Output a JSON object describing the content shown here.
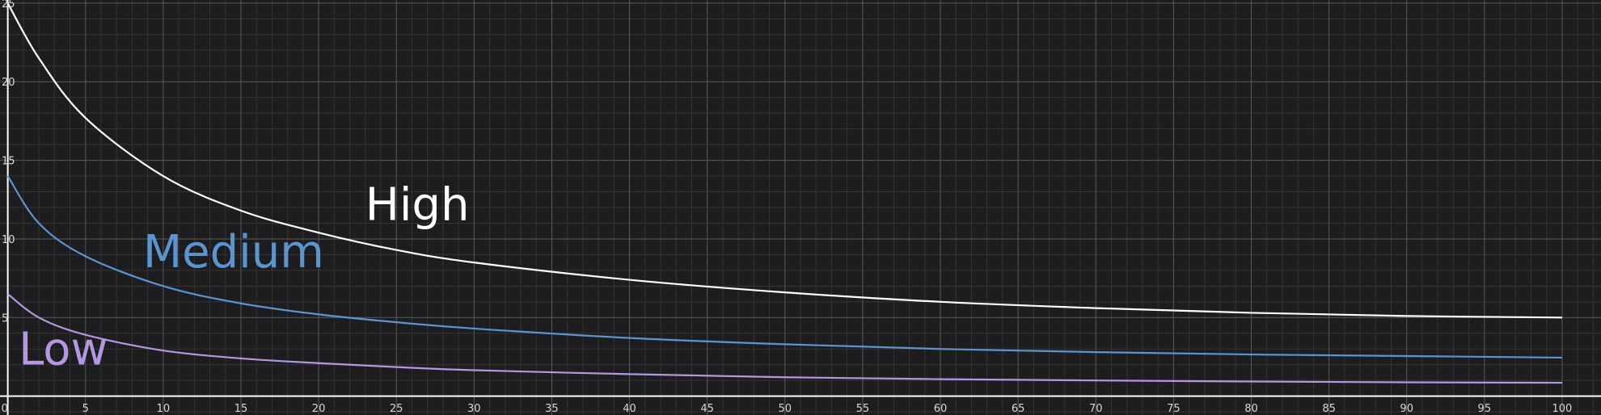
{
  "chart_data": {
    "type": "line",
    "title": "",
    "xlabel": "",
    "ylabel": "",
    "xlim": [
      -0.5,
      102.5
    ],
    "ylim": [
      -1.2,
      25.2
    ],
    "x_ticks": [
      "0",
      "5",
      "10",
      "15",
      "20",
      "25",
      "30",
      "35",
      "40",
      "45",
      "50",
      "55",
      "60",
      "65",
      "70",
      "75",
      "80",
      "85",
      "90",
      "95",
      "100"
    ],
    "y_ticks": [
      "5",
      "10",
      "15",
      "20",
      "25"
    ],
    "grid": true,
    "background": "#1d1d1f",
    "grid_major_color": "#5a5a5a",
    "grid_minor_color": "#343434",
    "axis_color": "#ffffff",
    "series": [
      {
        "name": "High",
        "color": "#ffffff",
        "x": [
          0,
          2,
          5,
          10,
          15,
          20,
          25,
          30,
          40,
          50,
          60,
          70,
          80,
          90,
          100
        ],
        "y": [
          25.0,
          21.5,
          17.7,
          14.0,
          11.8,
          10.4,
          9.3,
          8.5,
          7.4,
          6.6,
          6.0,
          5.6,
          5.3,
          5.1,
          5.0
        ]
      },
      {
        "name": "Medium",
        "color": "#5b95cf",
        "x": [
          0,
          2,
          5,
          10,
          15,
          20,
          25,
          30,
          40,
          50,
          60,
          70,
          80,
          90,
          100
        ],
        "y": [
          14.0,
          11.0,
          8.9,
          7.0,
          5.9,
          5.2,
          4.7,
          4.3,
          3.7,
          3.3,
          3.0,
          2.8,
          2.65,
          2.55,
          2.45
        ]
      },
      {
        "name": "Low",
        "color": "#b497e0",
        "x": [
          0,
          2,
          5,
          10,
          15,
          20,
          25,
          30,
          40,
          50,
          60,
          70,
          80,
          90,
          100
        ],
        "y": [
          6.5,
          5.0,
          3.9,
          2.9,
          2.4,
          2.1,
          1.85,
          1.65,
          1.4,
          1.2,
          1.08,
          1.0,
          0.93,
          0.88,
          0.85
        ]
      }
    ],
    "annotations": [
      {
        "text": "High",
        "color": "#ffffff",
        "x": 23,
        "y": 11.2
      },
      {
        "text": "Medium",
        "color": "#5b95cf",
        "x": 8.7,
        "y": 8.2
      },
      {
        "text": "Low",
        "color": "#b497e0",
        "x": 0.7,
        "y": 2.0
      }
    ]
  }
}
